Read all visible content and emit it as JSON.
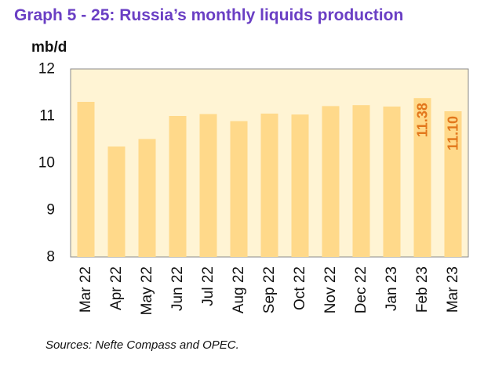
{
  "title": "Graph 5 - 25: Russia’s monthly liquids production",
  "source": "Sources: Nefte Compass and OPEC.",
  "colors": {
    "title": "#6a3fc4",
    "bar": "#ffd98a",
    "plot_bg": "#fff4d4",
    "data_label": "#e2761b",
    "frame": "#8a8a8a"
  },
  "chart_data": {
    "type": "bar",
    "title": "Graph 5 - 25: Russia’s monthly liquids production",
    "ylabel": "mb/d",
    "xlabel": "",
    "ylim": [
      8,
      12
    ],
    "yticks": [
      8,
      9,
      10,
      11,
      12
    ],
    "grid": false,
    "categories": [
      "Mar 22",
      "Apr 22",
      "May 22",
      "Jun 22",
      "Jul 22",
      "Aug 22",
      "Sep 22",
      "Oct 22",
      "Nov 22",
      "Dec 22",
      "Jan 23",
      "Feb 23",
      "Mar 23"
    ],
    "values": [
      11.3,
      10.35,
      10.51,
      11.0,
      11.04,
      10.89,
      11.05,
      11.03,
      11.21,
      11.23,
      11.2,
      11.38,
      11.1
    ],
    "data_labels": [
      {
        "index": 11,
        "text": "11.38"
      },
      {
        "index": 12,
        "text": "11.10"
      }
    ]
  }
}
